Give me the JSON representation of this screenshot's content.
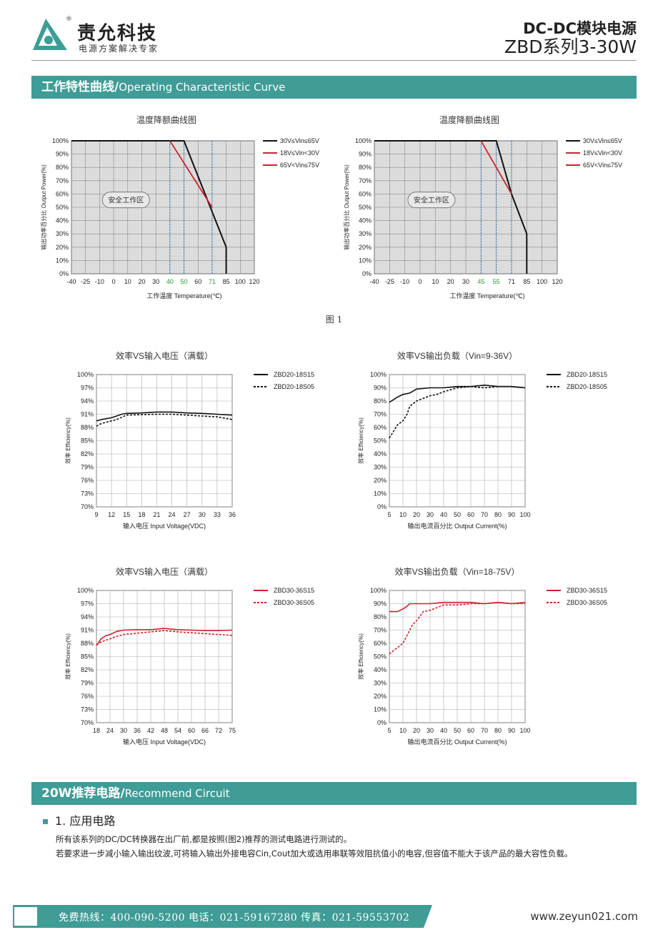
{
  "header": {
    "brand_name": "责允科技",
    "brand_reg": "®",
    "brand_slogan": "电源方案解决专家",
    "doc_title": "DC-DC模块电源",
    "doc_series": "ZBD系列3-30W"
  },
  "sections": {
    "operating": {
      "cn": "工作特性曲线/",
      "en": "Operating Characteristic Curve"
    },
    "circuit": {
      "cn": "20W推荐电路/",
      "en": "Recommend Circuit"
    }
  },
  "figure_caption": "图  1",
  "application": {
    "heading": "1. 应用电路",
    "para1": "所有该系列的DC/DC转换器在出厂前,都是按照(图2)推荐的测试电路进行测试的。",
    "para2": "若要求进一步减小输入输出纹波,可将输入输出外接电容Cin,Cout加大或选用串联等效阻抗值小的电容,但容值不能大于该产品的最大容性负载。"
  },
  "footer": {
    "text": "免费热线：400-090-5200   电话：021-59167280   传真：021-59553702",
    "url": "www.zeyun021.com"
  },
  "colors": {
    "accent": "#3f9c96",
    "black_line": "#111111",
    "red_line": "#d0202a",
    "highlight_tick": "#2a9c3a"
  },
  "chart_data": [
    {
      "id": "derating-1",
      "type": "line",
      "title": "温度降额曲线图",
      "xlabel": "工作温度 Temperature(℃)",
      "ylabel": "输出功率百分比 Output Power(%)",
      "x_ticks": [
        "-40",
        "-25",
        "-10",
        "0",
        "10",
        "20",
        "30",
        "40",
        "50",
        "60",
        "71",
        "85",
        "100",
        "120"
      ],
      "highlight_ticks": [
        "40",
        "50",
        "71"
      ],
      "y_ticks": [
        "0%",
        "10%",
        "20%",
        "30%",
        "40%",
        "50%",
        "60%",
        "70%",
        "80%",
        "90%",
        "100%"
      ],
      "ylim": [
        0,
        100
      ],
      "region_label": "安全工作区",
      "series": [
        {
          "name": "30V≤Vin≤65V",
          "color": "#111111",
          "points": [
            [
              -40,
              100
            ],
            [
              50,
              100
            ],
            [
              85,
              20
            ],
            [
              85,
              0
            ]
          ]
        },
        {
          "name": "18V≤Vin<30V",
          "color": "#d0202a",
          "points": [
            [
              40,
              100
            ],
            [
              71,
              50
            ]
          ]
        },
        {
          "name": "65V<Vin≤75V",
          "color": "#d0202a",
          "points": [
            [
              40,
              100
            ],
            [
              71,
              50
            ]
          ]
        }
      ],
      "guides": [
        40,
        50,
        71
      ]
    },
    {
      "id": "derating-2",
      "type": "line",
      "title": "温度降额曲线图",
      "xlabel": "工作温度 Temperature(℃)",
      "ylabel": "输出功率百分比 Output Power(%)",
      "x_ticks": [
        "-40",
        "-25",
        "-10",
        "0",
        "10",
        "20",
        "30",
        "45",
        "55",
        "71",
        "85",
        "100",
        "120"
      ],
      "highlight_ticks": [
        "45",
        "55"
      ],
      "y_ticks": [
        "0%",
        "10%",
        "20%",
        "30%",
        "40%",
        "50%",
        "60%",
        "70%",
        "80%",
        "90%",
        "100%"
      ],
      "ylim": [
        0,
        100
      ],
      "region_label": "安全工作区",
      "series": [
        {
          "name": "30V≤Vin≤65V",
          "color": "#111111",
          "points": [
            [
              -40,
              100
            ],
            [
              55,
              100
            ],
            [
              71,
              60
            ],
            [
              85,
              30
            ],
            [
              85,
              0
            ]
          ]
        },
        {
          "name": "18V≤Vin<30V",
          "color": "#d0202a",
          "points": [
            [
              45,
              100
            ],
            [
              71,
              60
            ]
          ]
        },
        {
          "name": "65V<Vin≤75V",
          "color": "#d0202a",
          "points": [
            [
              45,
              100
            ],
            [
              71,
              60
            ]
          ]
        }
      ],
      "guides": [
        45,
        55,
        71
      ]
    },
    {
      "id": "eff-vin-20",
      "type": "line",
      "title": "效率VS输入电压（满载）",
      "xlabel": "输入电压 Input Voltage(VDC)",
      "ylabel": "效率 Efficiency(%)",
      "x_ticks": [
        "9",
        "12",
        "15",
        "18",
        "21",
        "24",
        "27",
        "30",
        "33",
        "36"
      ],
      "y_ticks": [
        "70%",
        "73%",
        "76%",
        "79%",
        "82%",
        "85%",
        "88%",
        "91%",
        "94%",
        "97%",
        "100%"
      ],
      "xlim": [
        9,
        36
      ],
      "ylim": [
        70,
        100
      ],
      "series": [
        {
          "name": "ZBD20-18S15",
          "color": "#111111",
          "dashed": false,
          "x": [
            9,
            10,
            12,
            13,
            14,
            15,
            18,
            21,
            24,
            27,
            30,
            33,
            36
          ],
          "y": [
            89.5,
            89.8,
            90.2,
            90.6,
            91.0,
            91.2,
            91.3,
            91.5,
            91.5,
            91.3,
            91.2,
            91.0,
            90.8
          ]
        },
        {
          "name": "ZBD20-18S05",
          "color": "#111111",
          "dashed": true,
          "x": [
            9,
            10,
            12,
            13,
            14,
            15,
            18,
            21,
            24,
            27,
            30,
            33,
            36
          ],
          "y": [
            88.3,
            88.9,
            89.5,
            89.8,
            90.3,
            90.8,
            90.9,
            91.0,
            91.0,
            90.8,
            90.6,
            90.4,
            89.8
          ]
        }
      ]
    },
    {
      "id": "eff-load-20",
      "type": "line",
      "title": "效率VS输出负载（Vin=9-36V）",
      "xlabel": "输出电流百分比 Output Current(%)",
      "ylabel": "效率 Efficiency(%)",
      "x_ticks": [
        "5",
        "10",
        "20",
        "30",
        "40",
        "50",
        "60",
        "70",
        "80",
        "90",
        "100"
      ],
      "y_ticks": [
        "0%",
        "10%",
        "20%",
        "30%",
        "40%",
        "50%",
        "60%",
        "70%",
        "80%",
        "90%",
        "100%"
      ],
      "xlim": [
        5,
        100
      ],
      "ylim": [
        0,
        100
      ],
      "series": [
        {
          "name": "ZBD20-18S15",
          "color": "#111111",
          "dashed": false,
          "x": [
            5,
            8,
            10,
            15,
            20,
            30,
            40,
            50,
            60,
            70,
            80,
            90,
            100
          ],
          "y": [
            79,
            83,
            85,
            86,
            89,
            90,
            90,
            91,
            91,
            92,
            91,
            91,
            90
          ]
        },
        {
          "name": "ZBD20-18S05",
          "color": "#111111",
          "dashed": true,
          "x": [
            5,
            8,
            10,
            13,
            15,
            20,
            25,
            30,
            35,
            40,
            50,
            60,
            70,
            80,
            90,
            100
          ],
          "y": [
            52,
            62,
            65,
            70,
            76,
            80,
            82,
            84,
            85,
            87,
            90,
            91,
            90,
            91,
            91,
            90
          ]
        }
      ]
    },
    {
      "id": "eff-vin-30",
      "type": "line",
      "title": "效率VS输入电压（满载）",
      "xlabel": "输入电压 Input Voltage(VDC)",
      "ylabel": "效率 Efficiency(%)",
      "x_ticks": [
        "18",
        "24",
        "30",
        "36",
        "42",
        "48",
        "54",
        "60",
        "66",
        "72",
        "75"
      ],
      "y_ticks": [
        "70%",
        "73%",
        "76%",
        "79%",
        "82%",
        "85%",
        "88%",
        "91%",
        "94%",
        "97%",
        "100%"
      ],
      "xlim": [
        18,
        75
      ],
      "ylim": [
        70,
        100
      ],
      "series": [
        {
          "name": "ZBD30-36S15",
          "color": "#d0202a",
          "dashed": false,
          "x": [
            18,
            20,
            22,
            24,
            27,
            30,
            36,
            42,
            48,
            54,
            60,
            66,
            72,
            75
          ],
          "y": [
            87.5,
            89.0,
            89.7,
            90.0,
            90.7,
            91.0,
            91.1,
            91.1,
            91.4,
            91.1,
            91.0,
            90.9,
            90.9,
            91.0
          ]
        },
        {
          "name": "ZBD30-36S05",
          "color": "#d0202a",
          "dashed": true,
          "x": [
            18,
            20,
            22,
            24,
            27,
            30,
            36,
            42,
            48,
            54,
            60,
            66,
            72,
            75
          ],
          "y": [
            87.7,
            88.3,
            88.7,
            89.0,
            89.6,
            90.0,
            90.3,
            90.6,
            90.9,
            90.6,
            90.4,
            90.2,
            90.0,
            89.8
          ]
        }
      ]
    },
    {
      "id": "eff-load-30",
      "type": "line",
      "title": "效率VS输出负载（Vin=18-75V）",
      "xlabel": "输出电流百分比 Output Current(%)",
      "ylabel": "效率 Efficiency(%)",
      "x_ticks": [
        "5",
        "10",
        "20",
        "30",
        "40",
        "50",
        "60",
        "70",
        "80",
        "90",
        "100"
      ],
      "y_ticks": [
        "0%",
        "10%",
        "20%",
        "30%",
        "40%",
        "50%",
        "60%",
        "70%",
        "80%",
        "90%",
        "100%"
      ],
      "xlim": [
        5,
        100
      ],
      "ylim": [
        0,
        100
      ],
      "series": [
        {
          "name": "ZBD30-36S15",
          "color": "#d0202a",
          "dashed": false,
          "x": [
            5,
            8,
            10,
            13,
            15,
            20,
            25,
            30,
            40,
            50,
            60,
            70,
            80,
            90,
            100
          ],
          "y": [
            84,
            84,
            86,
            88,
            90,
            90,
            90,
            90,
            91,
            91,
            91,
            90,
            91,
            90,
            91
          ]
        },
        {
          "name": "ZBD30-36S05",
          "color": "#d0202a",
          "dashed": true,
          "x": [
            5,
            10,
            15,
            17,
            20,
            25,
            30,
            35,
            40,
            50,
            60,
            70,
            80,
            90,
            100
          ],
          "y": [
            52,
            60,
            70,
            74,
            77,
            84,
            85,
            87,
            89,
            89,
            90,
            90,
            91,
            90,
            90
          ]
        }
      ]
    }
  ]
}
